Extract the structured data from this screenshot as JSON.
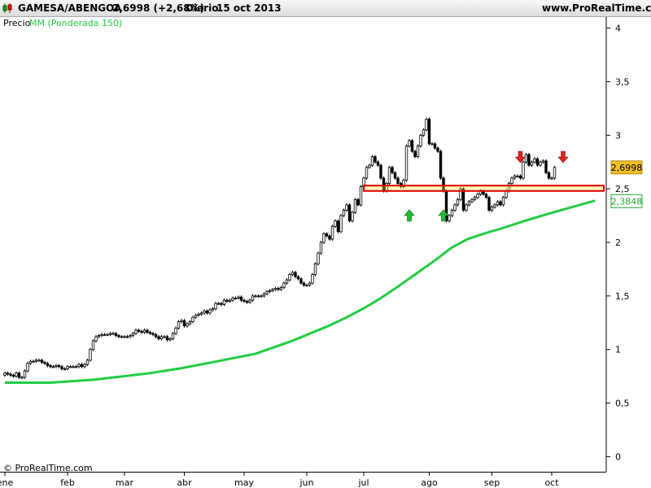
{
  "header": {
    "symbol": "GAMESA/ABENGOA",
    "price_change": "2,6998 (+2,68%)",
    "period": "Diario",
    "date": "15 oct 2013",
    "site": "www.ProRealTime.com"
  },
  "legend": {
    "price_label": "Precio",
    "ma_label": "MM (Ponderada 150)"
  },
  "copyright": "© ProRealTime.com",
  "colors": {
    "ma_line": "#22cc44",
    "support_box": "#dd0000",
    "support_fill": "#f5e030",
    "up_arrow": "#22bb33",
    "down_arrow": "#dd2222",
    "price_tag": "#f0c020",
    "ma_tag": "#22aa33"
  },
  "chart_data": {
    "type": "candlestick",
    "ylim": [
      -0.05,
      4.05
    ],
    "y_ticks": [
      {
        "value": 0,
        "label": "0"
      },
      {
        "value": 0.5,
        "label": "0,5"
      },
      {
        "value": 1,
        "label": "1"
      },
      {
        "value": 1.5,
        "label": "1,5"
      },
      {
        "value": 2,
        "label": "2"
      },
      {
        "value": 2.5,
        "label": "2,5"
      },
      {
        "value": 3,
        "label": "3"
      },
      {
        "value": 3.5,
        "label": "3,5"
      },
      {
        "value": 4,
        "label": "4"
      }
    ],
    "x_labels": [
      "ene",
      "feb",
      "mar",
      "abr",
      "may",
      "jun",
      "jul",
      "ago",
      "sep",
      "oct"
    ],
    "x_label_sessions": [
      0,
      22,
      42,
      63,
      84,
      106,
      126,
      149,
      171,
      192
    ],
    "total_sessions": 206,
    "price_series": [
      0.78,
      0.77,
      0.76,
      0.75,
      0.78,
      0.74,
      0.74,
      0.8,
      0.87,
      0.89,
      0.89,
      0.9,
      0.9,
      0.88,
      0.87,
      0.85,
      0.84,
      0.84,
      0.85,
      0.84,
      0.82,
      0.82,
      0.84,
      0.84,
      0.84,
      0.84,
      0.86,
      0.84,
      0.86,
      0.9,
      1,
      1.08,
      1.12,
      1.13,
      1.14,
      1.14,
      1.14,
      1.15,
      1.15,
      1.13,
      1.12,
      1.12,
      1.12,
      1.12,
      1.13,
      1.15,
      1.18,
      1.17,
      1.16,
      1.18,
      1.16,
      1.15,
      1.14,
      1.12,
      1.1,
      1.12,
      1.12,
      1.09,
      1.1,
      1.15,
      1.2,
      1.26,
      1.27,
      1.22,
      1.24,
      1.26,
      1.3,
      1.32,
      1.33,
      1.34,
      1.36,
      1.34,
      1.37,
      1.38,
      1.43,
      1.43,
      1.42,
      1.46,
      1.45,
      1.46,
      1.48,
      1.48,
      1.49,
      1.46,
      1.45,
      1.44,
      1.46,
      1.5,
      1.5,
      1.5,
      1.5,
      1.52,
      1.54,
      1.55,
      1.56,
      1.57,
      1.56,
      1.58,
      1.62,
      1.65,
      1.7,
      1.72,
      1.68,
      1.66,
      1.62,
      1.6,
      1.6,
      1.62,
      1.7,
      1.8,
      1.9,
      2.0,
      2.08,
      2.06,
      2.03,
      2.15,
      2.2,
      2.1,
      2.25,
      2.3,
      2.35,
      2.2,
      2.28,
      2.4,
      2.35,
      2.52,
      2.6,
      2.7,
      2.72,
      2.8,
      2.75,
      2.72,
      2.6,
      2.48,
      2.55,
      2.7,
      2.65,
      2.6,
      2.55,
      2.52,
      2.58,
      2.9,
      2.95,
      2.85,
      2.8,
      2.9,
      3.0,
      3.05,
      3.15,
      2.92,
      2.92,
      2.88,
      2.85,
      2.6,
      2.48,
      2.2,
      2.25,
      2.3,
      2.35,
      2.4,
      2.5,
      2.3,
      2.35,
      2.38,
      2.4,
      2.42,
      2.45,
      2.48,
      2.45,
      2.42,
      2.3,
      2.33,
      2.35,
      2.38,
      2.35,
      2.42,
      2.48,
      2.55,
      2.6,
      2.62,
      2.62,
      2.6,
      2.75,
      2.82,
      2.72,
      2.75,
      2.78,
      2.72,
      2.75,
      2.76,
      2.65,
      2.6,
      2.6,
      2.7
    ],
    "ma_series": [
      0.69,
      0.69,
      0.72,
      0.75,
      0.78,
      0.82,
      0.86,
      0.91,
      0.96,
      1.02,
      1.08,
      1.15,
      1.22,
      1.3,
      1.39,
      1.48,
      1.58,
      1.7,
      1.82,
      1.95,
      2.03,
      2.08,
      2.13,
      2.2,
      2.27,
      2.33,
      2.39
    ],
    "ma_sessions": [
      0,
      20,
      40,
      52,
      64,
      76,
      86,
      98,
      110,
      118,
      126,
      134,
      142,
      150,
      158,
      165,
      172,
      180,
      188,
      196,
      203,
      210,
      218,
      228,
      239,
      249,
      259
    ],
    "support_zone": [
      2.48,
      2.53
    ],
    "up_arrows_at_sessions": [
      142,
      154
    ],
    "down_arrows_at_sessions": [
      181,
      196
    ],
    "last_price": {
      "value": 2.6998,
      "label": "2,6998"
    },
    "last_ma": {
      "value": 2.3848,
      "label": "2,3848"
    }
  }
}
